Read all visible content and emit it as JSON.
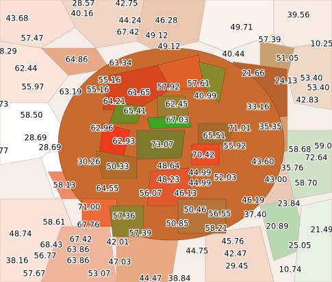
{
  "labels": [
    "28.57",
    "42.75",
    "40.16",
    "44.24",
    "46.28",
    "39.56",
    "43.68",
    "67.42",
    "49.12",
    "49.71",
    "57.47",
    "49.12",
    "57.39",
    "10.25",
    "8.29",
    "40.44",
    "51.05",
    "64.86",
    "63.34",
    "62.44",
    "21.66",
    "53.40",
    "55.16",
    "24.13",
    "55.97",
    "63.19",
    "55.16",
    "57.92",
    "57.61",
    "53.40",
    "61.65",
    "40.99",
    "64.21",
    "62.45",
    "42.83",
    "58.50",
    "65.41",
    "33.16",
    "73",
    "67.03",
    "62.96",
    "71.01",
    "35.35",
    "28.69",
    "65.51",
    "62.93",
    "73.07",
    "55.92",
    "28.69",
    "58.68",
    "59.0",
    "77",
    "70.42",
    "72.64",
    "30.26",
    "50.33",
    "48.64",
    "43.60",
    "35.76",
    "44.99",
    "52.03",
    "48.23",
    "44.99",
    "43.00",
    "58.70",
    "58.13",
    "64.55",
    "56.07",
    "46.13",
    "46.19",
    "23.84",
    "71.00",
    "50.46",
    "57.36",
    "50.85",
    "56.55",
    "37.40",
    "20.89",
    "21.49",
    "58.61",
    "67.76",
    "58.21",
    "48.74",
    "57.39",
    "67.42",
    "42.01",
    "45.76",
    "25.05",
    "68.43",
    "63.86",
    "56.77",
    "44.75",
    "42.47",
    "38.16",
    "63.86",
    "47.03",
    "29.45",
    "10.74",
    "57.67",
    "53.07",
    "44.47",
    "38.84"
  ]
}
